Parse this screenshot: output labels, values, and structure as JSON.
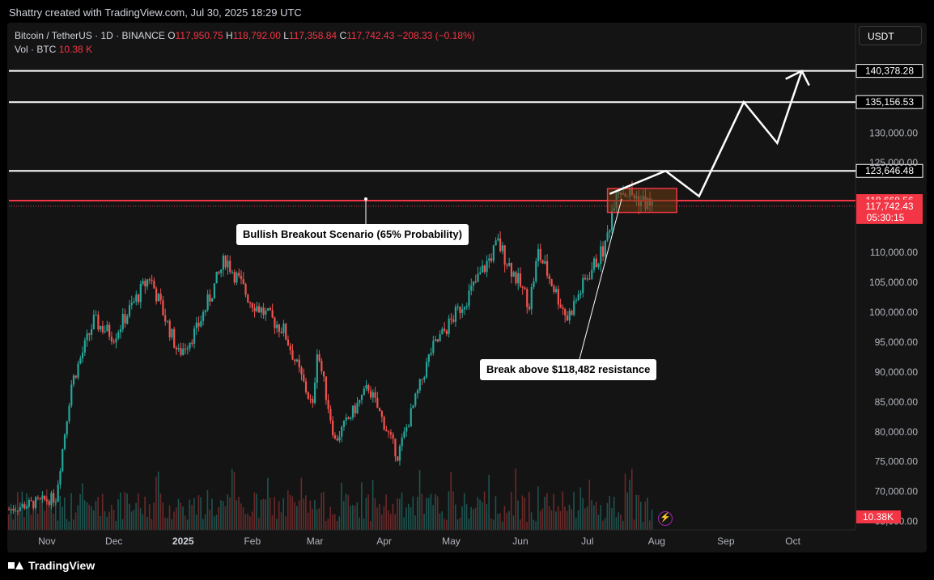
{
  "header": {
    "created_by": "Shattry created with TradingView.com, Jul 30, 2025 18:29 UTC"
  },
  "legend": {
    "symbol": "Bitcoin / TetherUS · 1D · BINANCE",
    "open_label": "O",
    "open": "117,950.75",
    "high_label": "H",
    "high": "118,792.00",
    "low_label": "L",
    "low": "117,358.84",
    "close_label": "C",
    "close": "117,742.43",
    "change": "−208.33 (−0.18%)",
    "volume_label": "Vol · BTC",
    "volume": "10.38 K"
  },
  "currency_button": "USDT",
  "footer": {
    "brand": "TradingView"
  },
  "annotations": {
    "scenario": "Bullish Breakout Scenario (65% Probability)",
    "breakout": "Break above $118,482 resistance"
  },
  "colors": {
    "up": "#26a69a",
    "down": "#ef5350",
    "accent_red": "#f23645",
    "white": "#ffffff",
    "grid": "#2a2a2a",
    "box_fill": "#6b3a10",
    "box_border": "#f23645"
  },
  "chart_data": {
    "type": "candlestick",
    "symbol": "BTCUSDT",
    "interval": "1D",
    "x_ticks": [
      "Nov",
      "Dec",
      "2025",
      "Feb",
      "Mar",
      "Apr",
      "May",
      "Jun",
      "Jul",
      "Aug",
      "Sep",
      "Oct"
    ],
    "y_ticks": [
      "140,378.28",
      "135,156.53",
      "130,000.00",
      "125,000.00",
      "123,646.48",
      "118,668.56",
      "117,742.43",
      "110,000.00",
      "105,000.00",
      "100,000.00",
      "95,000.00",
      "90,000.00",
      "85,000.00",
      "80,000.00",
      "75,000.00",
      "70,000.00",
      "65,000.00"
    ],
    "ylim": [
      64000,
      145000
    ],
    "countdown": "05:30:15",
    "volume_label": "10.38K",
    "series_close": [
      {
        "date": "2024-10-15",
        "close": 67000
      },
      {
        "date": "2024-11-05",
        "close": 69000
      },
      {
        "date": "2024-11-12",
        "close": 88000
      },
      {
        "date": "2024-11-22",
        "close": 98500
      },
      {
        "date": "2024-12-01",
        "close": 96000
      },
      {
        "date": "2024-12-17",
        "close": 106000
      },
      {
        "date": "2024-12-30",
        "close": 93000
      },
      {
        "date": "2025-01-07",
        "close": 97000
      },
      {
        "date": "2025-01-20",
        "close": 109000
      },
      {
        "date": "2025-01-31",
        "close": 102000
      },
      {
        "date": "2025-02-15",
        "close": 97000
      },
      {
        "date": "2025-02-28",
        "close": 84000
      },
      {
        "date": "2025-03-02",
        "close": 94000
      },
      {
        "date": "2025-03-10",
        "close": 78500
      },
      {
        "date": "2025-03-25",
        "close": 87500
      },
      {
        "date": "2025-04-07",
        "close": 76000
      },
      {
        "date": "2025-04-22",
        "close": 93500
      },
      {
        "date": "2025-05-09",
        "close": 103000
      },
      {
        "date": "2025-05-22",
        "close": 111500
      },
      {
        "date": "2025-06-05",
        "close": 101500
      },
      {
        "date": "2025-06-09",
        "close": 110000
      },
      {
        "date": "2025-06-22",
        "close": 99000
      },
      {
        "date": "2025-07-01",
        "close": 106000
      },
      {
        "date": "2025-07-09",
        "close": 111000
      },
      {
        "date": "2025-07-14",
        "close": 121000
      },
      {
        "date": "2025-07-30",
        "close": 117742.43
      }
    ],
    "levels": [
      {
        "label": "140,378.28",
        "value": 140378.28,
        "color": "#ffffff"
      },
      {
        "label": "135,156.53",
        "value": 135156.53,
        "color": "#ffffff"
      },
      {
        "label": "123,646.48",
        "value": 123646.48,
        "color": "#ffffff"
      },
      {
        "label": "118,668.56",
        "value": 118668.56,
        "color": "#f23645"
      }
    ],
    "current_price": {
      "label": "117,742.43",
      "value": 117742.43
    },
    "resistance_box": {
      "x_start": "2025-07-10",
      "x_end": "2025-08-10",
      "y_low": 116700,
      "y_high": 120700
    },
    "projection_path": [
      {
        "date": "2025-07-11",
        "y": 119800
      },
      {
        "date": "2025-08-05",
        "y": 123646
      },
      {
        "date": "2025-08-20",
        "y": 119400
      },
      {
        "date": "2025-09-09",
        "y": 135156
      },
      {
        "date": "2025-09-24",
        "y": 128300
      },
      {
        "date": "2025-10-05",
        "y": 140378
      }
    ]
  }
}
